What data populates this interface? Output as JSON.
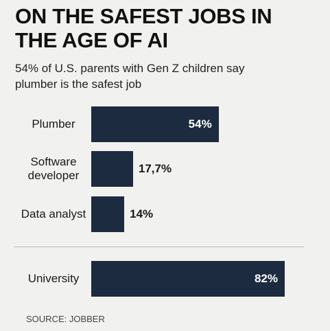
{
  "chart_data": {
    "type": "bar",
    "orientation": "horizontal",
    "title": "ON THE SAFEST JOBS IN THE AGE OF AI",
    "subtitle": "54% of U.S. parents with Gen Z children say plumber is the safest job",
    "categories": [
      "Plumber",
      "Software developer",
      "Data analyst",
      "University"
    ],
    "values": [
      54,
      17.7,
      14,
      82
    ],
    "value_labels": [
      "54%",
      "17,7%",
      "14%",
      "82%"
    ],
    "color": "#1c2b3f",
    "source": "SOURCE: JOBBER"
  }
}
